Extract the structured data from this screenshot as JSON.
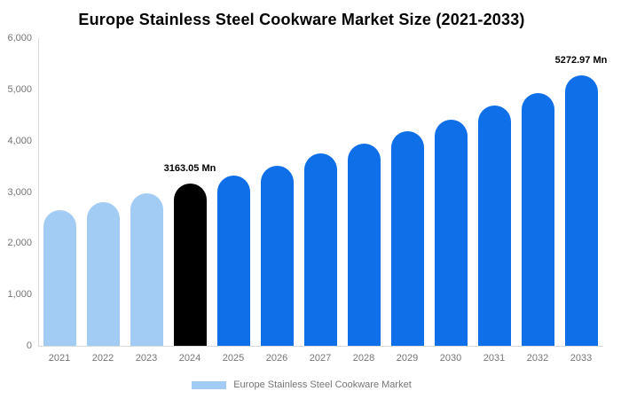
{
  "title": "Europe Stainless Steel Cookware Market Size (2021-2033)",
  "legend": {
    "label": "Europe Stainless Steel Cookware Market",
    "swatch_color": "#a3ccf5"
  },
  "colors": {
    "historical": "#a3ccf5",
    "base_year": "#000000",
    "forecast": "#0e6fe8",
    "axis_line": "#d9d9d9",
    "tick_text": "#757575",
    "title_text": "#000000",
    "annotation_text": "#000000",
    "background": "#ffffff"
  },
  "chart_data": {
    "type": "bar",
    "title": "Europe Stainless Steel Cookware Market Size (2021-2033)",
    "xlabel": "",
    "ylabel": "",
    "unit": "Mn",
    "categories": [
      "2021",
      "2022",
      "2023",
      "2024",
      "2025",
      "2026",
      "2027",
      "2028",
      "2029",
      "2030",
      "2031",
      "2032",
      "2033"
    ],
    "values": [
      2650,
      2800,
      2975,
      3163.05,
      3320,
      3510,
      3750,
      3945,
      4185,
      4410,
      4685,
      4925,
      5272.97
    ],
    "color_roles": [
      "historical",
      "historical",
      "historical",
      "base_year",
      "forecast",
      "forecast",
      "forecast",
      "forecast",
      "forecast",
      "forecast",
      "forecast",
      "forecast",
      "forecast"
    ],
    "annotations": [
      {
        "category": "2024",
        "text": "3163.05 Mn"
      },
      {
        "category": "2033",
        "text": "5272.97 Mn"
      }
    ],
    "ylim": [
      0,
      6000
    ],
    "yticks": [
      {
        "value": 0,
        "label": "0"
      },
      {
        "value": 1000,
        "label": "1,000"
      },
      {
        "value": 2000,
        "label": "2,000"
      },
      {
        "value": 3000,
        "label": "3,000"
      },
      {
        "value": 4000,
        "label": "4,000"
      },
      {
        "value": 5000,
        "label": "5,000"
      },
      {
        "value": 6000,
        "label": "6,000"
      }
    ],
    "grid": false,
    "legend_position": "bottom",
    "legend_entries": [
      "Europe Stainless Steel Cookware Market"
    ]
  }
}
